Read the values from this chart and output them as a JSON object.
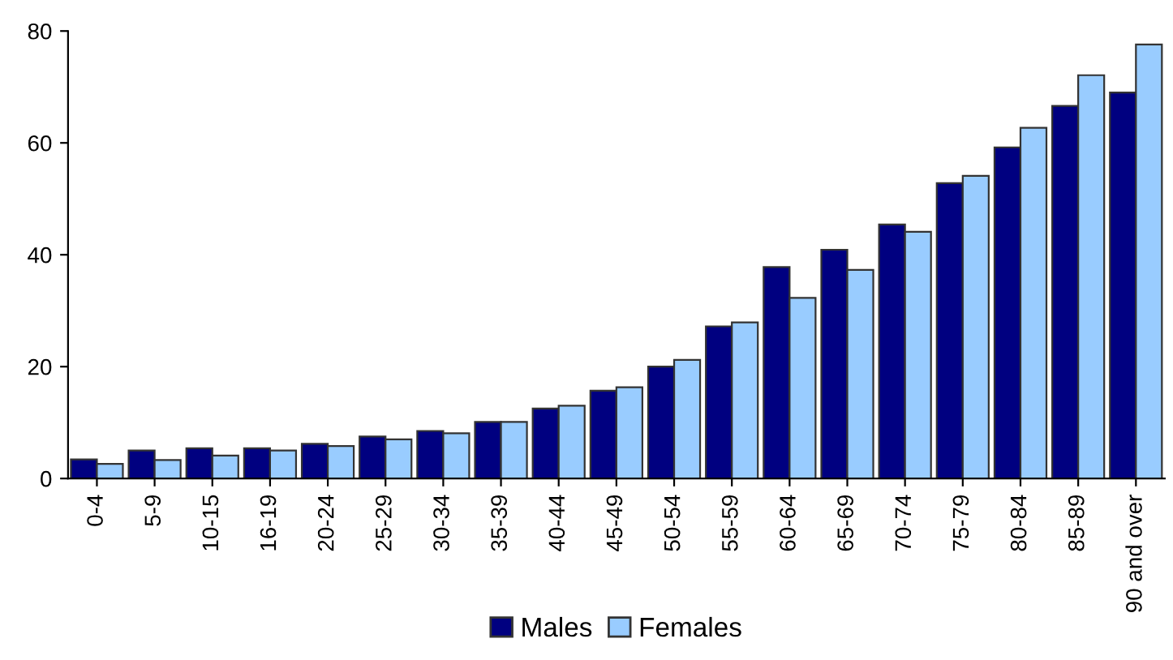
{
  "chart_data": {
    "type": "bar",
    "categories": [
      "0-4",
      "5-9",
      "10-15",
      "16-19",
      "20-24",
      "25-29",
      "30-34",
      "35-39",
      "40-44",
      "45-49",
      "50-54",
      "55-59",
      "60-64",
      "65-69",
      "70-74",
      "75-79",
      "80-84",
      "85-89",
      "90 and over"
    ],
    "series": [
      {
        "name": "Males",
        "color": "#000080",
        "values": [
          3.4,
          5.0,
          5.4,
          5.4,
          6.2,
          7.5,
          8.5,
          10.1,
          12.5,
          15.7,
          20.0,
          27.2,
          37.8,
          40.9,
          45.4,
          52.8,
          59.2,
          66.6,
          69.0
        ]
      },
      {
        "name": "Females",
        "color": "#99ccff",
        "values": [
          2.6,
          3.3,
          4.1,
          5.0,
          5.8,
          7.0,
          8.1,
          10.1,
          13.0,
          16.3,
          21.2,
          27.9,
          32.3,
          37.3,
          44.1,
          54.1,
          62.7,
          72.1,
          77.6
        ]
      }
    ],
    "ylim": [
      0,
      80
    ],
    "yticks": [
      0,
      20,
      40,
      60,
      80
    ],
    "grid": false,
    "legend": "bottom"
  }
}
